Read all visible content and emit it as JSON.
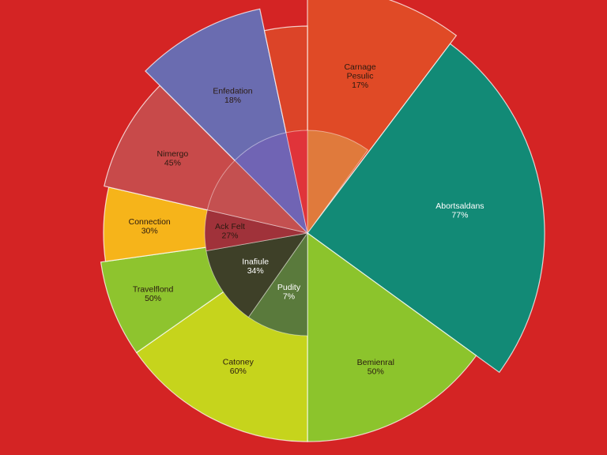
{
  "chart_data": {
    "type": "pie",
    "background": "#d42424",
    "outer_slices": [
      {
        "name": "Carnage Pesulic",
        "label_lines": [
          "Carnage",
          "Pesulic"
        ],
        "pct": "17%",
        "start": 0,
        "end": 37,
        "r": 313,
        "color": "#e04a26",
        "light": false
      },
      {
        "name": "Abortsaldans",
        "label_lines": [
          "Abortsaldans"
        ],
        "pct": "77%",
        "start": 37,
        "end": 126,
        "r": 300,
        "color": "#128a76",
        "light": true
      },
      {
        "name": "Bemienral",
        "label_lines": [
          "Bemienral"
        ],
        "pct": "50%",
        "start": 126,
        "end": 180,
        "r": 264,
        "color": "#8cc42c",
        "light": false
      },
      {
        "name": "Catoney",
        "label_lines": [
          "Catoney"
        ],
        "pct": "60%",
        "start": 180,
        "end": 235,
        "r": 264,
        "color": "#c6d41c",
        "light": false
      },
      {
        "name": "Travelflond",
        "label_lines": [
          "Travelflond"
        ],
        "pct": "50%",
        "start": 235,
        "end": 262,
        "r": 264,
        "color": "#8ec42e",
        "light": false
      },
      {
        "name": "Connection",
        "label_lines": [
          "Connection"
        ],
        "pct": "30%",
        "start": 262,
        "end": 283,
        "r": 258,
        "color": "#f6b41a",
        "light": false
      },
      {
        "name": "Nimergo",
        "label_lines": [
          "Nimergo"
        ],
        "pct": "45%",
        "start": 283,
        "end": 315,
        "r": 264,
        "color": "#c84a4a",
        "light": false
      },
      {
        "name": "Enfedation",
        "label_lines": [
          "Enfedation"
        ],
        "pct": "18%",
        "start": 315,
        "end": 348,
        "r": 290,
        "color": "#6a6cb0",
        "light": false
      },
      {
        "name": "",
        "label_lines": [],
        "pct": "",
        "start": 348,
        "end": 360,
        "r": 262,
        "color": "#dc4428",
        "light": false
      }
    ],
    "inner_slices": [
      {
        "name": "",
        "label_lines": [],
        "pct": "",
        "start": 0,
        "end": 36,
        "color": "#e07a3c",
        "light": false
      },
      {
        "name": "Pudity",
        "label_lines": [
          "Pudity"
        ],
        "pct": "7%",
        "start": 180,
        "end": 215,
        "color": "#5a7a3c",
        "light": true
      },
      {
        "name": "Inafiule",
        "label_lines": [
          "Inafiule"
        ],
        "pct": "34%",
        "start": 215,
        "end": 260,
        "color": "#3e4028",
        "light": true
      },
      {
        "name": "Ack Felt",
        "label_lines": [
          "Ack Felt"
        ],
        "pct": "27%",
        "start": 260,
        "end": 283,
        "color": "#a0323a",
        "light": false
      },
      {
        "name": "",
        "label_lines": [],
        "pct": "",
        "start": 283,
        "end": 315,
        "color": "#c45050",
        "light": false
      },
      {
        "name": "",
        "label_lines": [],
        "pct": "",
        "start": 315,
        "end": 348,
        "color": "#7064b4",
        "light": false
      },
      {
        "name": "",
        "label_lines": [],
        "pct": "",
        "start": 348,
        "end": 360,
        "color": "#e0343a",
        "light": false
      }
    ]
  }
}
